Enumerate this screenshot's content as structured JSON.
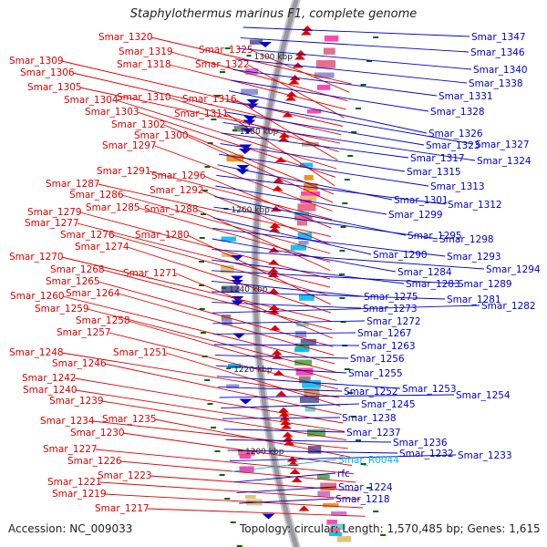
{
  "title": "Staphylothermus marinus F1, complete genome",
  "footer": {
    "accession": "Accession: NC_009033",
    "topology": "Topology: circular; Length: 1,570,485 bp; Genes: 1,615"
  },
  "colors": {
    "forward": "#dd0000",
    "reverse": "#0000cc",
    "rna": "#00bbdd",
    "backbone": "#9a9a9a",
    "tick": "#006600"
  },
  "ticks": [
    "1300 kbp",
    "1280 kbp",
    "1260 kbp",
    "1240 kbp",
    "1220 kbp",
    "1200 kbp"
  ],
  "left_labels": [
    "Smar_1320",
    "Smar_1325",
    "Smar_1319",
    "Smar_1318",
    "Smar_1322",
    "Smar_1309",
    "Smar_1306",
    "Smar_1305",
    "Smar_1310",
    "Smar_1316",
    "Smar_1304",
    "Smar_1303",
    "Smar_1311",
    "Smar_1302",
    "Smar_1300",
    "Smar_1297",
    "Smar_1291",
    "Smar_1296",
    "Smar_1287",
    "Smar_1292",
    "Smar_1286",
    "Smar_1285",
    "Smar_1288",
    "Smar_1279",
    "Smar_1277",
    "Smar_1276",
    "Smar_1280",
    "Smar_1274",
    "Smar_1270",
    "Smar_1268",
    "Smar_1271",
    "Smar_1265",
    "Smar_1264",
    "Smar_1260",
    "Smar_1259",
    "Smar_1258",
    "Smar_1257",
    "Smar_1248",
    "Smar_1251",
    "Smar_1246",
    "Smar_1242",
    "Smar_1240",
    "Smar_1239",
    "Smar_1234",
    "Smar_1235",
    "Smar_1230",
    "Smar_1227",
    "Smar_1226",
    "Smar_1223",
    "Smar_1221",
    "Smar_1219",
    "Smar_1217"
  ],
  "right_labels": [
    "Smar_1347",
    "Smar_1346",
    "Smar_1340",
    "Smar_1338",
    "Smar_1331",
    "Smar_1328",
    "Smar_1326",
    "Smar_1327",
    "Smar_1323",
    "Smar_1324",
    "Smar_1317",
    "Smar_1315",
    "Smar_1313",
    "Smar_1301",
    "Smar_1312",
    "Smar_1299",
    "Smar_1295",
    "Smar_1298",
    "Smar_1290",
    "Smar_1293",
    "Smar_1284",
    "Smar_1294",
    "Smar_1283",
    "Smar_1289",
    "Smar_1275",
    "Smar_1281",
    "Smar_1273",
    "Smar_1282",
    "Smar_1272",
    "Smar_1267",
    "Smar_1263",
    "Smar_1256",
    "Smar_1255",
    "Smar_1253",
    "Smar_1252",
    "Smar_1254",
    "Smar_1245",
    "Smar_1238",
    "Smar_1237",
    "Smar_1236",
    "Smar_1232",
    "Smar_1233",
    "Smar_R0044",
    "rfc",
    "Smar_1224",
    "Smar_1218"
  ],
  "rna_labels": [
    "Smar_R0044"
  ]
}
